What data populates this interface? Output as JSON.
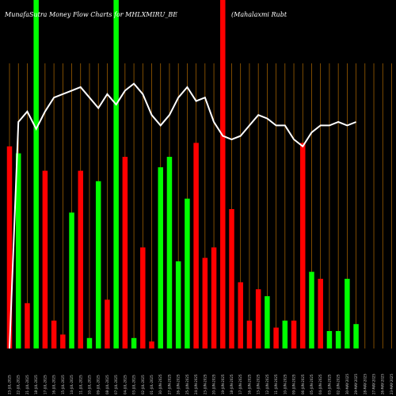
{
  "chart_data": {
    "type": "bar",
    "title": "MunafaSutra  Money Flow  Charts for MHLXMIRU_BE",
    "subtitle": "(Mahalaxmi   Rubt",
    "colors": {
      "background": "#000000",
      "up": "#00ff00",
      "down": "#ff0000",
      "grid": "#b36b00",
      "line": "#ffffff",
      "text": "#ffffff"
    },
    "ylim": [
      0,
      100
    ],
    "categories": [
      "23-JUL-2025",
      "22-JUL-2025",
      "21-JUL-2025",
      "18-JUL-2025",
      "17-JUL-2025",
      "16-JUL-2025",
      "15-JUL-2025",
      "14-JUL-2025",
      "11-JUL-2025",
      "10-JUL-2025",
      "09-JUL-2025",
      "08-JUL-2025",
      "07-JUL-2025",
      "04-JUL-2025",
      "03-JUL-2025",
      "02-JUL-2025",
      "01-JUL-2025",
      "30-JUN-2025",
      "27-JUN-2025",
      "26-JUN-2025",
      "25-JUN-2025",
      "24-JUN-2025",
      "23-JUN-2025",
      "20-JUN-2025",
      "19-JUN-2025",
      "18-JUN-2025",
      "17-JUN-2025",
      "16-JUN-2025",
      "13-JUN-2025",
      "12-JUN-2025",
      "11-JUN-2025",
      "10-JUN-2025",
      "09-JUN-2025",
      "06-JUN-2025",
      "05-JUN-2025",
      "04-JUN-2025",
      "03-JUN-2025",
      "02-JUN-2025",
      "30-MAY-2025",
      "29-MAY-2025",
      "28-MAY-2025",
      "27-MAY-2025",
      "26-MAY-2025",
      "23-MAY-2025",
      "22-MAY-2025"
    ],
    "values": [
      58,
      56,
      13,
      100,
      51,
      8,
      4,
      39,
      51,
      3,
      48,
      14,
      100,
      55,
      3,
      29,
      2,
      52,
      55,
      25,
      43,
      59,
      26,
      29,
      100,
      40,
      19,
      8,
      17,
      15,
      6,
      8,
      8,
      59,
      22,
      20,
      5,
      5,
      20,
      7,
      0,
      0,
      0,
      0,
      0
    ],
    "direction": [
      "down",
      "up",
      "down",
      "up",
      "down",
      "down",
      "down",
      "up",
      "down",
      "up",
      "up",
      "down",
      "up",
      "down",
      "up",
      "down",
      "down",
      "up",
      "up",
      "up",
      "up",
      "down",
      "down",
      "down",
      "down",
      "down",
      "down",
      "down",
      "down",
      "up",
      "down",
      "up",
      "down",
      "down",
      "up",
      "down",
      "up",
      "up",
      "up",
      "up",
      "up",
      "up",
      "up",
      "up",
      "up"
    ],
    "mfi_line": [
      0,
      65,
      68,
      63,
      68,
      72,
      73,
      74,
      75,
      72,
      69,
      73,
      70,
      74,
      76,
      73,
      67,
      64,
      67,
      72,
      75,
      71,
      72,
      65,
      61,
      60,
      61,
      64,
      67,
      66,
      64,
      64,
      60,
      58,
      62,
      64,
      64,
      65,
      64,
      65,
      0,
      0,
      0,
      0,
      0
    ],
    "grid": "vertical",
    "legend": "none"
  }
}
